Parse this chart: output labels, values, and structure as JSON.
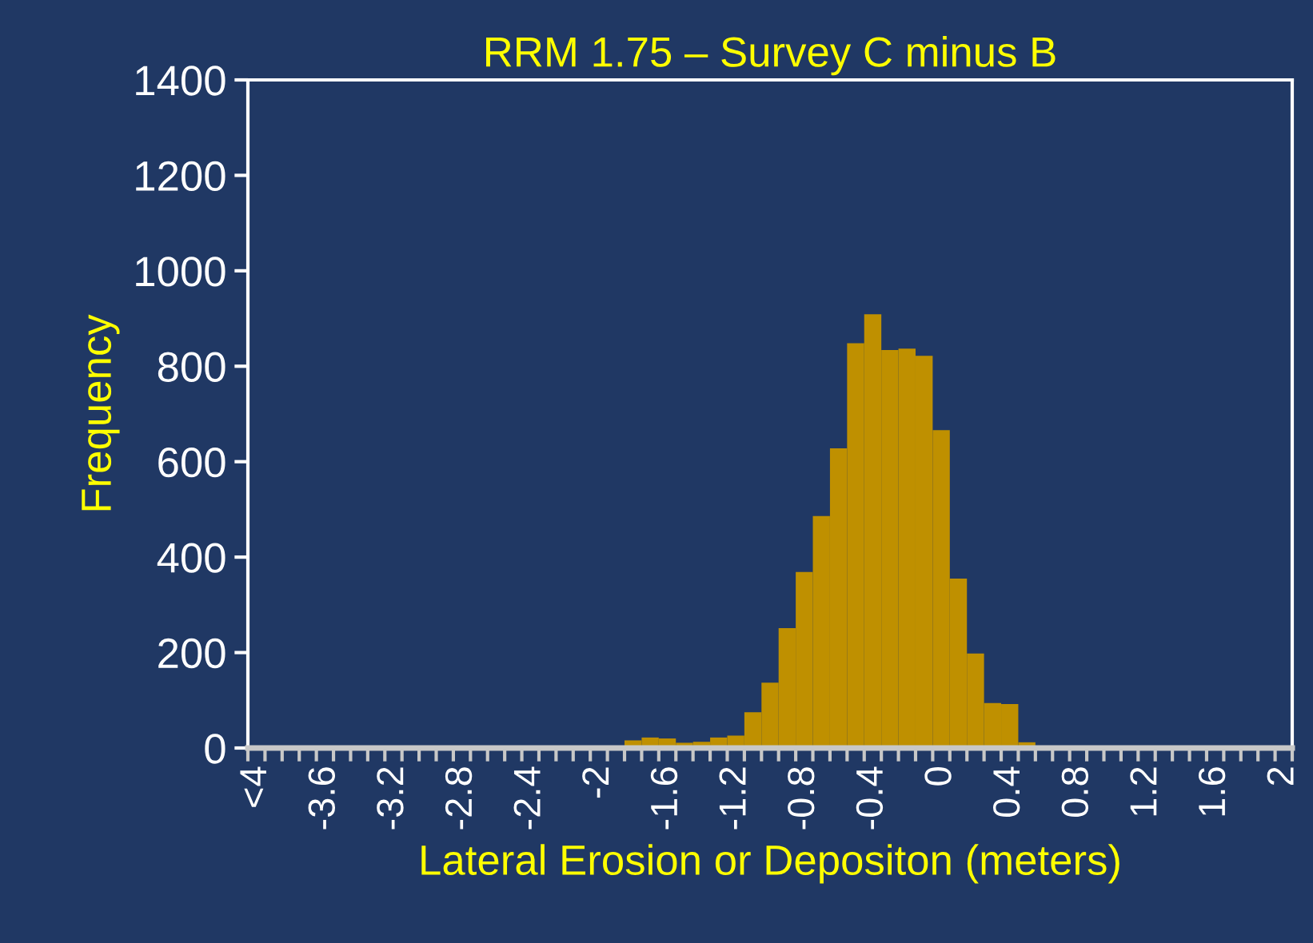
{
  "chart_data": {
    "type": "bar",
    "title": "RRM 1.75 – Survey C minus B",
    "xlabel": "Lateral Erosion or Depositon (meters)",
    "ylabel": "Frequency",
    "categories": [
      "<4",
      null,
      null,
      null,
      "-3.6",
      null,
      null,
      null,
      "-3.2",
      null,
      null,
      null,
      "-2.8",
      null,
      null,
      null,
      "-2.4",
      null,
      null,
      null,
      "-2",
      null,
      null,
      null,
      "-1.6",
      null,
      null,
      null,
      "-1.2",
      null,
      null,
      null,
      "-0.8",
      null,
      null,
      null,
      "-0.4",
      null,
      null,
      null,
      "0",
      null,
      null,
      null,
      "0.4",
      null,
      null,
      null,
      "0.8",
      null,
      null,
      null,
      "1.2",
      null,
      null,
      null,
      "1.6",
      null,
      null,
      null,
      "2"
    ],
    "values": [
      0,
      0,
      0,
      0,
      0,
      0,
      0,
      0,
      0,
      0,
      0,
      0,
      0,
      0,
      0,
      0,
      0,
      0,
      0,
      0,
      0,
      0,
      16,
      22,
      20,
      11,
      13,
      22,
      26,
      75,
      137,
      251,
      369,
      486,
      628,
      848,
      909,
      834,
      837,
      822,
      666,
      355,
      198,
      94,
      92,
      12,
      0,
      0,
      0,
      0,
      0,
      0,
      0,
      0,
      0,
      0,
      0,
      0,
      0,
      0,
      0
    ],
    "color": "#bf9000",
    "ylim": [
      0,
      1400
    ],
    "yticks": [
      0,
      200,
      400,
      600,
      800,
      1000,
      1200,
      1400
    ],
    "grid": false,
    "legend": false
  }
}
